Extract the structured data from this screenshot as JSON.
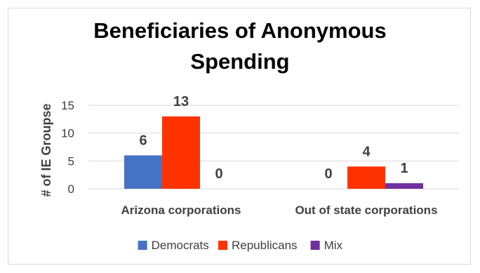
{
  "chart_data": {
    "type": "bar",
    "title": "Beneficiaries of Anonymous Spending",
    "xlabel": "",
    "ylabel": "# of IE Groupse",
    "categories": [
      "Arizona corporations",
      "Out of state corporations"
    ],
    "series": [
      {
        "name": "Democrats",
        "values": [
          6,
          0
        ],
        "color": "#4472c4"
      },
      {
        "name": "Republicans",
        "values": [
          13,
          4
        ],
        "color": "#ff3300"
      },
      {
        "name": "Mix",
        "values": [
          0,
          1
        ],
        "color": "#7030a0"
      }
    ],
    "yticks": [
      "0",
      "5",
      "10",
      "15"
    ],
    "ylim": [
      0,
      15
    ],
    "grid": true,
    "legend_position": "bottom"
  }
}
